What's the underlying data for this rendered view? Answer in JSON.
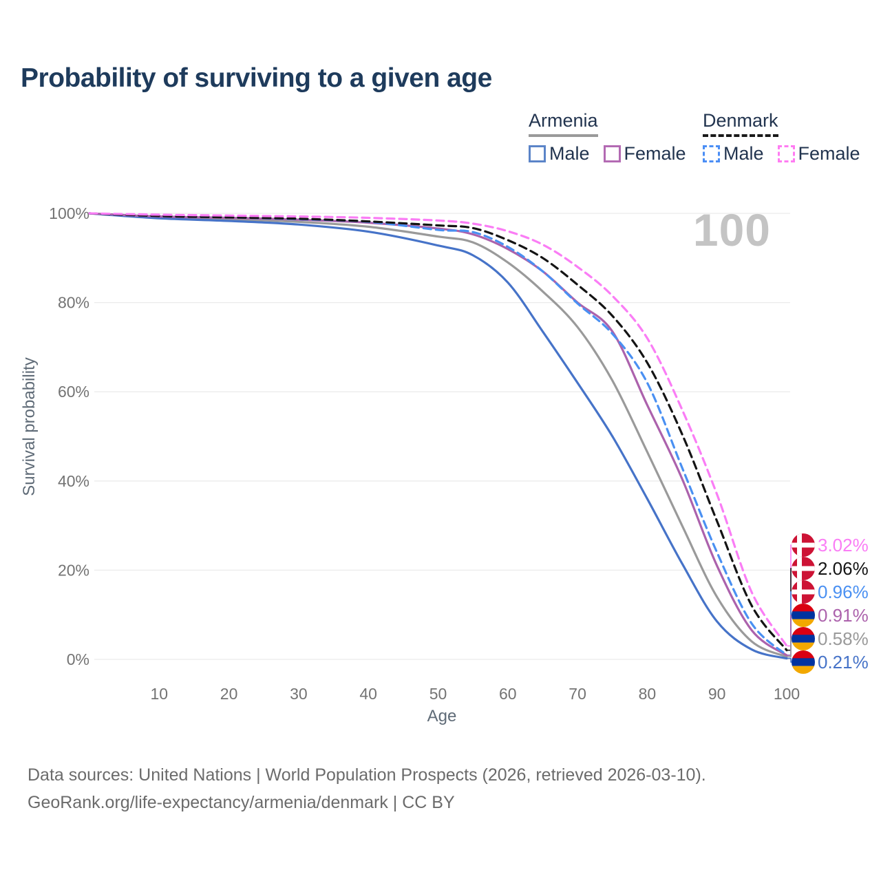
{
  "title": "Probability of surviving to a given age",
  "legend": {
    "groups": [
      {
        "name": "Armenia",
        "line_style": "solid",
        "underline_color": "#9a9a9a",
        "items": [
          {
            "label": "Male",
            "color": "#5b84c8",
            "dashed": false
          },
          {
            "label": "Female",
            "color": "#b36ab3",
            "dashed": false
          }
        ]
      },
      {
        "name": "Denmark",
        "line_style": "dashed",
        "underline_color": "#1a1a1a",
        "items": [
          {
            "label": "Male",
            "color": "#4b8ef5",
            "dashed": true
          },
          {
            "label": "Female",
            "color": "#ff7cf2",
            "dashed": true
          }
        ]
      }
    ]
  },
  "chart_data": {
    "type": "line",
    "title": "Probability of surviving to a given age",
    "xlabel": "Age",
    "ylabel": "Survival probability",
    "watermark": "100",
    "xlim": [
      0,
      100
    ],
    "ylim": [
      0,
      100
    ],
    "grid": "horizontal",
    "gridline_color": "#ebebeb",
    "tick_color": "#737373",
    "x_ticks": [
      10,
      20,
      30,
      40,
      50,
      60,
      70,
      80,
      90,
      100
    ],
    "y_ticks": [
      {
        "value": 100,
        "label": "100%"
      },
      {
        "value": 80,
        "label": "80%"
      },
      {
        "value": 60,
        "label": "60%"
      },
      {
        "value": 40,
        "label": "40%"
      },
      {
        "value": 20,
        "label": "20%"
      },
      {
        "value": 0,
        "label": "0%"
      }
    ],
    "ages": [
      0,
      10,
      20,
      30,
      40,
      50,
      55,
      60,
      65,
      70,
      75,
      80,
      85,
      90,
      95,
      100
    ],
    "series": [
      {
        "name": "Armenia Both sexes",
        "country": "Armenia",
        "sex": "Both sexes",
        "color": "#9a9a9a",
        "dashed": false,
        "flag": "armenia",
        "end_label": "0.58%",
        "label_color": "#9a9a9a",
        "values": [
          100,
          99.1,
          98.7,
          98.1,
          97.0,
          94.8,
          93.5,
          89,
          82.5,
          74.5,
          62.5,
          46.5,
          30,
          14,
          4,
          0.58
        ]
      },
      {
        "name": "Armenia Male",
        "country": "Armenia",
        "sex": "Male",
        "color": "#4673c8",
        "dashed": false,
        "flag": "armenia",
        "end_label": "0.21%",
        "label_color": "#4673c8",
        "values": [
          100,
          98.9,
          98.3,
          97.5,
          95.9,
          92.8,
          90.6,
          84.5,
          73.5,
          62,
          50,
          36,
          21.5,
          8.5,
          2.2,
          0.21
        ]
      },
      {
        "name": "Armenia Female",
        "country": "Armenia",
        "sex": "Female",
        "color": "#ac62ac",
        "dashed": false,
        "flag": "armenia",
        "end_label": "0.91%",
        "label_color": "#ac62ac",
        "values": [
          100,
          99.3,
          99.0,
          98.6,
          97.9,
          96.6,
          95.3,
          92,
          87,
          80,
          73.5,
          57,
          40.5,
          21,
          6.5,
          0.91
        ]
      },
      {
        "name": "Denmark Male",
        "country": "Denmark",
        "sex": "Male",
        "color": "#4a90f2",
        "dashed": true,
        "flag": "denmark",
        "end_label": "0.96%",
        "label_color": "#4a90f2",
        "values": [
          100,
          99.4,
          99.1,
          98.7,
          98.1,
          96.3,
          95.8,
          92.5,
          87,
          79.8,
          73,
          62,
          43,
          24,
          8,
          0.96
        ]
      },
      {
        "name": "Denmark Both sexes",
        "country": "Denmark",
        "sex": "Both sexes",
        "color": "#141414",
        "dashed": true,
        "flag": "denmark",
        "end_label": "2.06%",
        "label_color": "#141414",
        "values": [
          100,
          99.4,
          99.1,
          98.8,
          98.2,
          97.3,
          96.7,
          94,
          90,
          84,
          77,
          66.5,
          50.5,
          31,
          12,
          2.06
        ]
      },
      {
        "name": "Denmark Female",
        "country": "Denmark",
        "sex": "Female",
        "color": "#fa7df5",
        "dashed": true,
        "flag": "denmark",
        "end_label": "3.02%",
        "label_color": "#fa7df5",
        "values": [
          100,
          99.7,
          99.5,
          99.3,
          99.0,
          98.4,
          97.7,
          96,
          93,
          88,
          81.5,
          72,
          56,
          37,
          15,
          3.02
        ]
      }
    ],
    "flag_colors": {
      "denmark_red": "#cd1335",
      "armenia_red": "#d90012",
      "armenia_blue": "#0033a0",
      "armenia_orange": "#f2a800"
    }
  },
  "footer": {
    "line1": "Data sources: United Nations | World Population Prospects (2026, retrieved 2026-03-10).",
    "line2": "GeoRank.org/life-expectancy/armenia/denmark | CC BY"
  }
}
